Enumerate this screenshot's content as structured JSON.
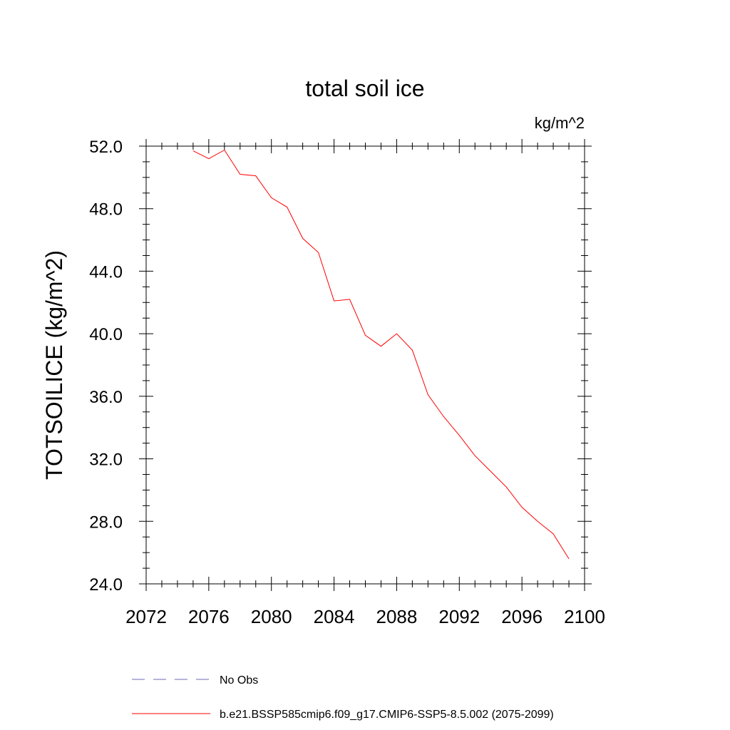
{
  "chart_data": {
    "type": "line",
    "title": "total soil ice",
    "units_label": "kg/m^2",
    "ylabel": "TOTSOILICE  (kg/m^2)",
    "xlabel": "",
    "xlim": [
      2072,
      2100
    ],
    "ylim": [
      24.0,
      52.0
    ],
    "x_ticks": [
      2072,
      2076,
      2080,
      2084,
      2088,
      2092,
      2096,
      2100
    ],
    "y_ticks": [
      "24.0",
      "28.0",
      "32.0",
      "36.0",
      "40.0",
      "44.0",
      "48.0",
      "52.0"
    ],
    "grid": false,
    "legend_position": "bottom",
    "series": [
      {
        "name": "No Obs",
        "style": "dashed",
        "color": "#6a6ab8",
        "x": [],
        "y": []
      },
      {
        "name": "b.e21.BSSP585cmip6.f09_g17.CMIP6-SSP5-8.5.002 (2075-2099)",
        "style": "solid",
        "color": "#ff0000",
        "x": [
          2075,
          2076,
          2077,
          2078,
          2079,
          2080,
          2081,
          2082,
          2083,
          2084,
          2085,
          2086,
          2087,
          2088,
          2089,
          2090,
          2091,
          2092,
          2093,
          2094,
          2095,
          2096,
          2097,
          2098,
          2099
        ],
        "y": [
          51.7,
          51.2,
          51.75,
          50.2,
          50.1,
          48.7,
          48.1,
          46.1,
          45.2,
          42.1,
          42.2,
          39.9,
          39.2,
          40.0,
          38.95,
          36.1,
          34.7,
          33.5,
          32.2,
          31.2,
          30.2,
          28.9,
          28.0,
          27.2,
          25.6
        ]
      }
    ]
  }
}
